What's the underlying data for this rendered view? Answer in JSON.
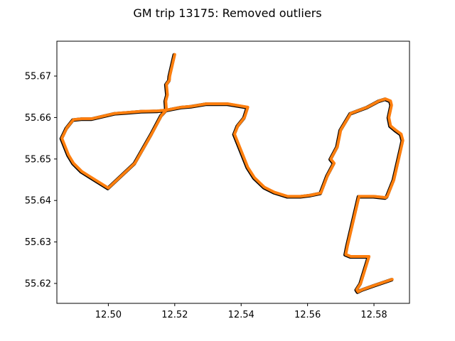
{
  "chart_data": {
    "type": "line",
    "title": "GM trip 13175: Removed outliers",
    "xlabel": "",
    "ylabel": "",
    "xlim": [
      12.4845,
      12.5907
    ],
    "ylim": [
      55.6152,
      55.6784
    ],
    "xticks": [
      12.5,
      12.52,
      12.54,
      12.56,
      12.58
    ],
    "xtick_labels": [
      "12.50",
      "12.52",
      "12.54",
      "12.56",
      "12.58"
    ],
    "yticks": [
      55.62,
      55.63,
      55.64,
      55.65,
      55.66,
      55.67
    ],
    "ytick_labels": [
      "55.62",
      "55.63",
      "55.64",
      "55.65",
      "55.66",
      "55.67"
    ],
    "grid": false,
    "legend": "none",
    "series": [
      {
        "color": "#000000",
        "role": "raw-trace",
        "x": [
          12.52,
          12.5185,
          12.5184,
          12.5175,
          12.5178,
          12.5173,
          12.5175,
          12.516,
          12.513,
          12.508,
          12.5,
          12.492,
          12.4895,
          12.488,
          12.486,
          12.4875,
          12.4895,
          12.492,
          12.495,
          12.502,
          12.5055,
          12.51,
          12.515,
          12.5175,
          12.522,
          12.525,
          12.5295,
          12.536,
          12.542,
          12.541,
          12.539,
          12.538,
          12.5385,
          12.54,
          12.542,
          12.544,
          12.547,
          12.55,
          12.554,
          12.558,
          12.561,
          12.564,
          12.566,
          12.568,
          12.567,
          12.569,
          12.57,
          12.573,
          12.578,
          12.5815,
          12.5835,
          12.585,
          12.5853,
          12.5845,
          12.585,
          12.5865,
          12.5882,
          12.5887,
          12.588,
          12.586,
          12.584,
          12.5835,
          12.58,
          12.5755,
          12.572,
          12.5715,
          12.573,
          12.5785,
          12.576,
          12.5748,
          12.5752,
          12.5765,
          12.58,
          12.5855
        ],
        "y": [
          55.6752,
          55.67,
          55.669,
          55.668,
          55.6655,
          55.664,
          55.6618,
          55.6605,
          55.656,
          55.649,
          55.643,
          55.647,
          55.649,
          55.651,
          55.655,
          55.6575,
          55.6595,
          55.6597,
          55.6597,
          55.661,
          55.6612,
          55.6615,
          55.6616,
          55.6618,
          55.6625,
          55.6627,
          55.6633,
          55.6633,
          55.6625,
          55.66,
          55.658,
          55.656,
          55.655,
          55.652,
          55.648,
          55.6455,
          55.6432,
          55.642,
          55.641,
          55.641,
          55.6413,
          55.6418,
          55.646,
          55.649,
          55.65,
          55.653,
          55.657,
          55.661,
          55.6625,
          55.664,
          55.6645,
          55.664,
          55.663,
          55.66,
          55.658,
          55.657,
          55.656,
          55.6545,
          55.652,
          55.645,
          55.641,
          55.6407,
          55.641,
          55.641,
          55.629,
          55.627,
          55.6265,
          55.6265,
          55.62,
          55.6185,
          55.618,
          55.6185,
          55.6195,
          55.621
        ]
      },
      {
        "color": "#ff7f0e",
        "role": "filtered-trace",
        "x": [
          12.52,
          12.5185,
          12.5184,
          12.5175,
          12.5178,
          12.5173,
          12.5175,
          12.516,
          12.513,
          12.508,
          12.5,
          12.492,
          12.4895,
          12.488,
          12.486,
          12.4875,
          12.4895,
          12.492,
          12.495,
          12.502,
          12.5055,
          12.51,
          12.515,
          12.5175,
          12.522,
          12.525,
          12.5295,
          12.536,
          12.542,
          12.541,
          12.539,
          12.538,
          12.5385,
          12.54,
          12.542,
          12.544,
          12.547,
          12.55,
          12.554,
          12.558,
          12.561,
          12.564,
          12.566,
          12.568,
          12.567,
          12.569,
          12.57,
          12.573,
          12.578,
          12.5815,
          12.5835,
          12.585,
          12.5853,
          12.5845,
          12.585,
          12.5865,
          12.5882,
          12.5887,
          12.588,
          12.586,
          12.584,
          12.5835,
          12.58,
          12.5755,
          12.572,
          12.5715,
          12.573,
          12.5785,
          12.576,
          12.5748,
          12.5752,
          12.5765,
          12.58,
          12.5855
        ],
        "y": [
          55.6752,
          55.67,
          55.669,
          55.668,
          55.6655,
          55.664,
          55.6618,
          55.6605,
          55.656,
          55.649,
          55.643,
          55.647,
          55.649,
          55.651,
          55.655,
          55.6575,
          55.6595,
          55.6597,
          55.6597,
          55.661,
          55.6612,
          55.6615,
          55.6616,
          55.6618,
          55.6625,
          55.6627,
          55.6633,
          55.6633,
          55.6625,
          55.66,
          55.658,
          55.656,
          55.655,
          55.652,
          55.648,
          55.6455,
          55.6432,
          55.642,
          55.641,
          55.641,
          55.6413,
          55.6418,
          55.646,
          55.649,
          55.65,
          55.653,
          55.657,
          55.661,
          55.6625,
          55.664,
          55.6645,
          55.664,
          55.663,
          55.66,
          55.658,
          55.657,
          55.656,
          55.6545,
          55.652,
          55.645,
          55.641,
          55.6407,
          55.641,
          55.641,
          55.629,
          55.627,
          55.6265,
          55.6265,
          55.62,
          55.6185,
          55.618,
          55.6185,
          55.6195,
          55.621
        ]
      }
    ]
  }
}
